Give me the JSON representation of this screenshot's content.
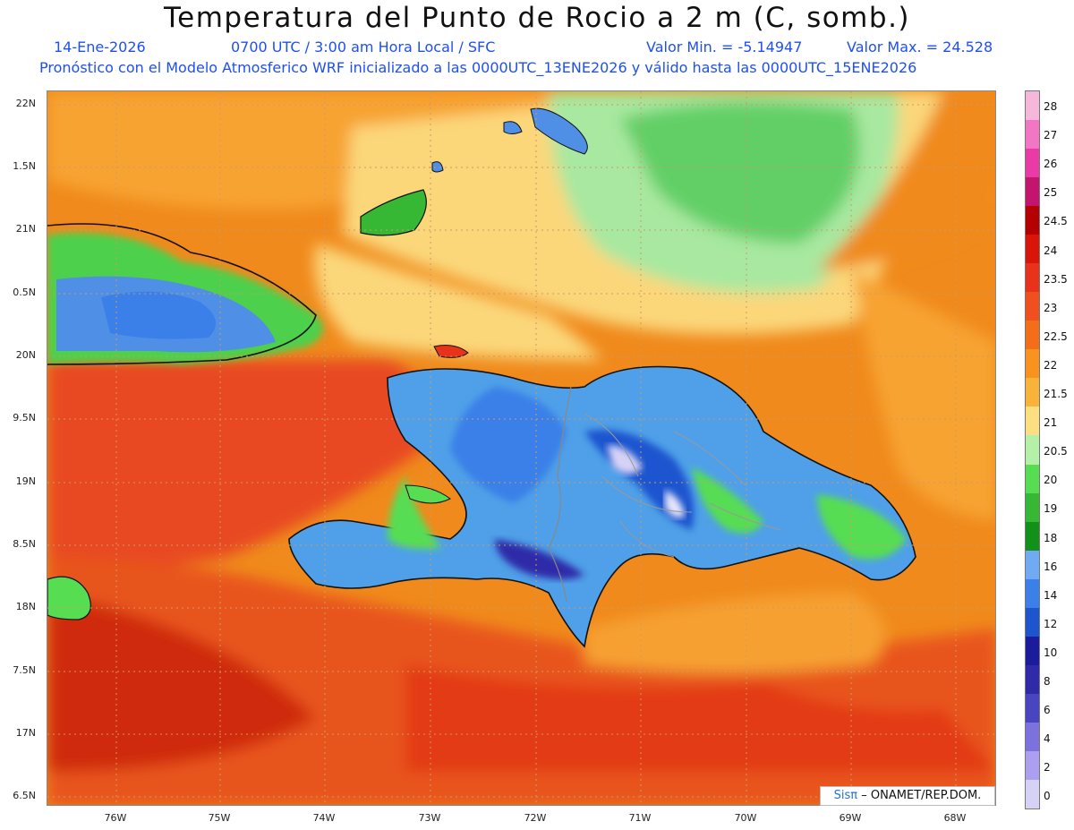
{
  "header": {
    "title": "Temperatura del Punto de Rocio a 2 m (C, somb.)",
    "date": "14-Ene-2026",
    "time": "0700 UTC / 3:00 am Hora Local / SFC",
    "min": "Valor Min. = -5.14947",
    "max": "Valor Max. = 24.528",
    "subtitle": "Pronóstico con el Modelo Atmosferico WRF inicializado a las 0000UTC_13ENE2026 y válido hasta las  0000UTC_15ENE2026"
  },
  "map": {
    "lat_labels": [
      "22N",
      "1.5N",
      "21N",
      "0.5N",
      "20N",
      "9.5N",
      "19N",
      "8.5N",
      "18N",
      "7.5N",
      "17N",
      "6.5N"
    ],
    "lon_labels": [
      "76W",
      "75W",
      "74W",
      "73W",
      "72W",
      "71W",
      "70W",
      "69W",
      "68W"
    ],
    "regions": [
      "Cuba",
      "Great Inagua",
      "Turks and Caicos",
      "Haiti",
      "Dominican Republic",
      "Jamaica",
      "Caribbean Sea",
      "Atlantic Ocean"
    ]
  },
  "colorbar": {
    "labels": [
      "28",
      "27",
      "26",
      "25",
      "24.5",
      "24",
      "23.5",
      "23",
      "22.5",
      "22",
      "21.5",
      "21",
      "20.5",
      "20",
      "19",
      "18",
      "16",
      "14",
      "12",
      "10",
      "8",
      "6",
      "4",
      "2",
      "0"
    ],
    "colors": [
      "#f6b8da",
      "#f276c4",
      "#e93aa6",
      "#c4156e",
      "#b40000",
      "#d81508",
      "#e8321a",
      "#f0501f",
      "#f46e19",
      "#f7931e",
      "#f9b33a",
      "#fbdf80",
      "#b5f0a8",
      "#56dd52",
      "#36b835",
      "#12901a",
      "#70aaf2",
      "#3a80e8",
      "#1e55cf",
      "#1a1c9c",
      "#2e2aa8",
      "#4745c0",
      "#7d72dd",
      "#ad9ff0",
      "#d6d2f6"
    ]
  },
  "credit": {
    "brand": "Sisπ",
    "org": "– ONAMET/REP.DOM."
  }
}
